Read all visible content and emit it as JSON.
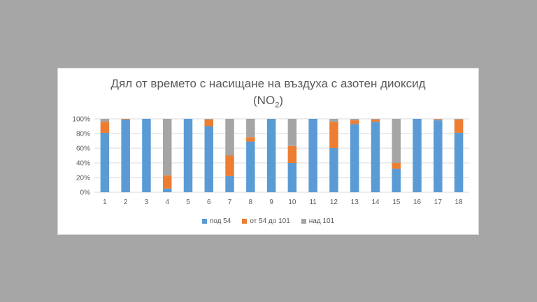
{
  "chart_data": {
    "type": "bar",
    "stacked": true,
    "title_main": "Дял от времето с насищане на въздуха с азотен диоксид",
    "title_formula_prefix": "(NO",
    "title_formula_sub": "2",
    "title_formula_suffix": ")",
    "categories": [
      "1",
      "2",
      "3",
      "4",
      "5",
      "6",
      "7",
      "8",
      "9",
      "10",
      "11",
      "12",
      "13",
      "14",
      "15",
      "16",
      "17",
      "18"
    ],
    "series": [
      {
        "name": "под 54",
        "color": "#5b9bd5",
        "values": [
          81,
          99,
          100,
          5,
          100,
          90,
          22,
          69,
          100,
          40,
          100,
          60,
          93,
          96,
          32,
          100,
          98,
          81
        ]
      },
      {
        "name": "от 54 до 101",
        "color": "#ed7d31",
        "values": [
          15,
          1,
          0,
          18,
          0,
          9,
          28,
          6,
          0,
          23,
          0,
          36,
          5,
          3,
          8,
          0,
          1,
          18
        ]
      },
      {
        "name": "над 101",
        "color": "#a5a5a5",
        "values": [
          4,
          0,
          0,
          77,
          0,
          1,
          50,
          25,
          0,
          37,
          0,
          4,
          2,
          1,
          60,
          0,
          1,
          1
        ]
      }
    ],
    "ylim": [
      0,
      100
    ],
    "y_ticks": [
      "0%",
      "20%",
      "40%",
      "60%",
      "80%",
      "100%"
    ],
    "grid": true,
    "legend_position": "bottom"
  }
}
